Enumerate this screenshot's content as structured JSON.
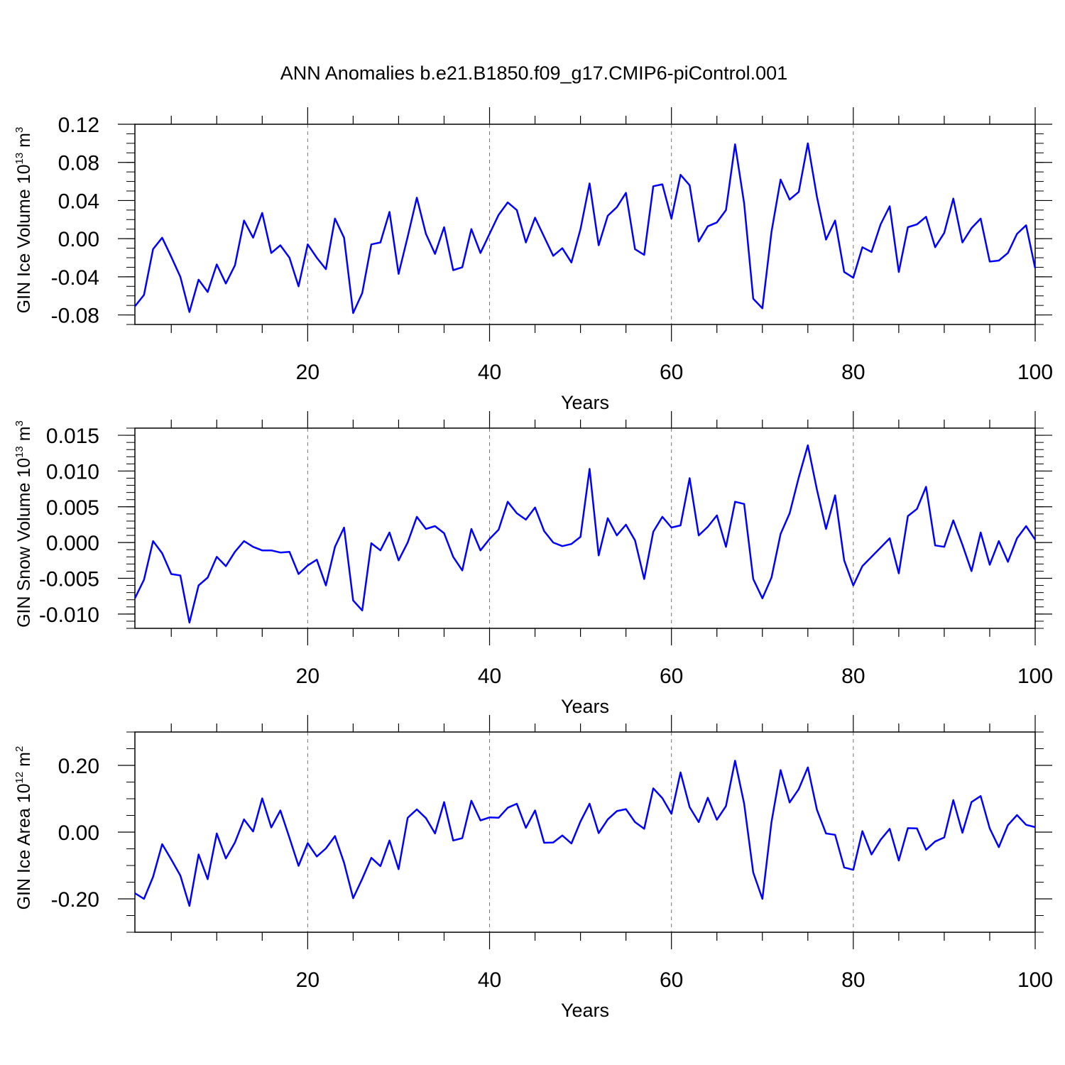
{
  "title": "ANN Anomalies b.e21.B1850.f09_g17.CMIP6-piControl.001",
  "line_color": "#0000ff",
  "chart_data": [
    {
      "type": "line",
      "ylabel": {
        "main": "GIN Ice Volume 10",
        "sup1": "13",
        "mid": " m",
        "sup2": "3"
      },
      "xlabel": "Years",
      "xlim": [
        1,
        100
      ],
      "ylim": [
        -0.09,
        0.12
      ],
      "xticks": [
        20,
        40,
        60,
        80,
        100
      ],
      "xtick_labels": [
        "20",
        "40",
        "60",
        "80",
        "100"
      ],
      "yticks": [
        -0.08,
        -0.04,
        0.0,
        0.04,
        0.08,
        0.12
      ],
      "ytick_labels": [
        "-0.08",
        "-0.04",
        "0.00",
        "0.04",
        "0.08",
        "0.12"
      ],
      "minor_step": 0.01,
      "grid": "vertical dashed at major x ticks",
      "x": [
        1,
        2,
        3,
        4,
        5,
        6,
        7,
        8,
        9,
        10,
        11,
        12,
        13,
        14,
        15,
        16,
        17,
        18,
        19,
        20,
        21,
        22,
        23,
        24,
        25,
        26,
        27,
        28,
        29,
        30,
        31,
        32,
        33,
        34,
        35,
        36,
        37,
        38,
        39,
        40,
        41,
        42,
        43,
        44,
        45,
        46,
        47,
        48,
        49,
        50,
        51,
        52,
        53,
        54,
        55,
        56,
        57,
        58,
        59,
        60,
        61,
        62,
        63,
        64,
        65,
        66,
        67,
        68,
        69,
        70,
        71,
        72,
        73,
        74,
        75,
        76,
        77,
        78,
        79,
        80,
        81,
        82,
        83,
        84,
        85,
        86,
        87,
        88,
        89,
        90,
        91,
        92,
        93,
        94,
        95,
        96,
        97,
        98,
        99,
        100
      ],
      "values": [
        -0.071,
        -0.059,
        -0.011,
        0.001,
        -0.019,
        -0.04,
        -0.077,
        -0.043,
        -0.056,
        -0.027,
        -0.047,
        -0.028,
        0.019,
        0.001,
        0.027,
        -0.015,
        -0.007,
        -0.02,
        -0.05,
        -0.006,
        -0.02,
        -0.032,
        0.021,
        0.001,
        -0.078,
        -0.057,
        -0.006,
        -0.004,
        0.028,
        -0.037,
        0.002,
        0.043,
        0.005,
        -0.016,
        0.012,
        -0.033,
        -0.03,
        0.01,
        -0.015,
        0.005,
        0.025,
        0.038,
        0.03,
        -0.004,
        0.022,
        0.002,
        -0.018,
        -0.01,
        -0.025,
        0.01,
        0.058,
        -0.007,
        0.024,
        0.033,
        0.048,
        -0.011,
        -0.017,
        0.055,
        0.057,
        0.021,
        0.067,
        0.056,
        -0.003,
        0.013,
        0.017,
        0.03,
        0.099,
        0.037,
        -0.063,
        -0.073,
        0.007,
        0.062,
        0.041,
        0.049,
        0.1,
        0.044,
        -0.001,
        0.019,
        -0.035,
        -0.041,
        -0.009,
        -0.014,
        0.015,
        0.034,
        -0.035,
        0.012,
        0.015,
        0.023,
        -0.009,
        0.006,
        0.042,
        -0.004,
        0.011,
        0.021,
        -0.024,
        -0.023,
        -0.015,
        0.005,
        0.014,
        -0.031
      ]
    },
    {
      "type": "line",
      "ylabel": {
        "main": "GIN Snow Volume 10",
        "sup1": "13",
        "mid": " m",
        "sup2": "3"
      },
      "xlabel": "Years",
      "xlim": [
        1,
        100
      ],
      "ylim": [
        -0.012,
        0.016
      ],
      "xticks": [
        20,
        40,
        60,
        80,
        100
      ],
      "xtick_labels": [
        "20",
        "40",
        "60",
        "80",
        "100"
      ],
      "yticks": [
        -0.01,
        -0.005,
        0.0,
        0.005,
        0.01,
        0.015
      ],
      "ytick_labels": [
        "-0.010",
        "-0.005",
        "0.000",
        "0.005",
        "0.010",
        "0.015"
      ],
      "minor_step": 0.001,
      "grid": "vertical dashed at major x ticks",
      "x": [
        1,
        2,
        3,
        4,
        5,
        6,
        7,
        8,
        9,
        10,
        11,
        12,
        13,
        14,
        15,
        16,
        17,
        18,
        19,
        20,
        21,
        22,
        23,
        24,
        25,
        26,
        27,
        28,
        29,
        30,
        31,
        32,
        33,
        34,
        35,
        36,
        37,
        38,
        39,
        40,
        41,
        42,
        43,
        44,
        45,
        46,
        47,
        48,
        49,
        50,
        51,
        52,
        53,
        54,
        55,
        56,
        57,
        58,
        59,
        60,
        61,
        62,
        63,
        64,
        65,
        66,
        67,
        68,
        69,
        70,
        71,
        72,
        73,
        74,
        75,
        76,
        77,
        78,
        79,
        80,
        81,
        82,
        83,
        84,
        85,
        86,
        87,
        88,
        89,
        90,
        91,
        92,
        93,
        94,
        95,
        96,
        97,
        98,
        99,
        100
      ],
      "values": [
        -0.0078,
        -0.0052,
        0.0002,
        -0.0015,
        -0.0044,
        -0.0046,
        -0.0112,
        -0.006,
        -0.0049,
        -0.002,
        -0.0033,
        -0.0013,
        0.0002,
        -0.0006,
        -0.0011,
        -0.0011,
        -0.0014,
        -0.0013,
        -0.0044,
        -0.0032,
        -0.0024,
        -0.006,
        -0.0006,
        0.0021,
        -0.0081,
        -0.0095,
        -0.0001,
        -0.0011,
        0.0014,
        -0.0025,
        0.0,
        0.0036,
        0.0019,
        0.0023,
        0.0013,
        -0.002,
        -0.0039,
        0.0019,
        -0.0011,
        0.0005,
        0.0018,
        0.0057,
        0.0041,
        0.0032,
        0.0049,
        0.0016,
        0.0,
        -0.0005,
        -0.0002,
        0.0008,
        0.0103,
        -0.0018,
        0.0034,
        0.001,
        0.0025,
        0.0003,
        -0.0051,
        0.0015,
        0.0036,
        0.0021,
        0.0024,
        0.009,
        0.001,
        0.0022,
        0.0038,
        -0.0006,
        0.0057,
        0.0054,
        -0.0051,
        -0.0078,
        -0.0049,
        0.0012,
        0.0041,
        0.0091,
        0.0136,
        0.0074,
        0.0019,
        0.0066,
        -0.0025,
        -0.006,
        -0.0033,
        -0.002,
        -0.0007,
        0.0006,
        -0.0043,
        0.0037,
        0.0047,
        0.0078,
        -0.0004,
        -0.0006,
        0.0031,
        -0.0003,
        -0.004,
        0.0014,
        -0.0031,
        0.0002,
        -0.0027,
        0.0006,
        0.0023,
        0.0004
      ]
    },
    {
      "type": "line",
      "ylabel": {
        "main": "GIN Ice Area 10",
        "sup1": "12",
        "mid": " m",
        "sup2": "2"
      },
      "xlabel": "Years",
      "xlim": [
        1,
        100
      ],
      "ylim": [
        -0.3,
        0.3
      ],
      "xticks": [
        20,
        40,
        60,
        80,
        100
      ],
      "xtick_labels": [
        "20",
        "40",
        "60",
        "80",
        "100"
      ],
      "yticks": [
        -0.2,
        0.0,
        0.2
      ],
      "ytick_labels": [
        "-0.20",
        "0.00",
        "0.20"
      ],
      "minor_step": 0.05,
      "grid": "vertical dashed at major x ticks",
      "x": [
        1,
        2,
        3,
        4,
        5,
        6,
        7,
        8,
        9,
        10,
        11,
        12,
        13,
        14,
        15,
        16,
        17,
        18,
        19,
        20,
        21,
        22,
        23,
        24,
        25,
        26,
        27,
        28,
        29,
        30,
        31,
        32,
        33,
        34,
        35,
        36,
        37,
        38,
        39,
        40,
        41,
        42,
        43,
        44,
        45,
        46,
        47,
        48,
        49,
        50,
        51,
        52,
        53,
        54,
        55,
        56,
        57,
        58,
        59,
        60,
        61,
        62,
        63,
        64,
        65,
        66,
        67,
        68,
        69,
        70,
        71,
        72,
        73,
        74,
        75,
        76,
        77,
        78,
        79,
        80,
        81,
        82,
        83,
        84,
        85,
        86,
        87,
        88,
        89,
        90,
        91,
        92,
        93,
        94,
        95,
        96,
        97,
        98,
        99,
        100
      ],
      "values": [
        -0.183,
        -0.2,
        -0.134,
        -0.036,
        -0.082,
        -0.13,
        -0.221,
        -0.067,
        -0.141,
        -0.004,
        -0.079,
        -0.031,
        0.038,
        0.002,
        0.101,
        0.014,
        0.065,
        -0.017,
        -0.101,
        -0.033,
        -0.073,
        -0.049,
        -0.012,
        -0.092,
        -0.198,
        -0.14,
        -0.077,
        -0.102,
        -0.025,
        -0.111,
        0.043,
        0.068,
        0.042,
        -0.004,
        0.09,
        -0.025,
        -0.018,
        0.094,
        0.035,
        0.044,
        0.043,
        0.073,
        0.085,
        0.013,
        0.065,
        -0.032,
        -0.031,
        -0.01,
        -0.034,
        0.032,
        0.085,
        -0.003,
        0.038,
        0.063,
        0.069,
        0.03,
        0.01,
        0.131,
        0.102,
        0.055,
        0.179,
        0.075,
        0.03,
        0.103,
        0.037,
        0.078,
        0.214,
        0.085,
        -0.121,
        -0.2,
        0.03,
        0.186,
        0.089,
        0.129,
        0.194,
        0.067,
        -0.004,
        -0.008,
        -0.106,
        -0.113,
        0.003,
        -0.067,
        -0.023,
        0.01,
        -0.085,
        0.012,
        0.011,
        -0.053,
        -0.028,
        -0.016,
        0.096,
        -0.002,
        0.09,
        0.108,
        0.011,
        -0.045,
        0.021,
        0.051,
        0.022,
        0.015
      ]
    }
  ]
}
